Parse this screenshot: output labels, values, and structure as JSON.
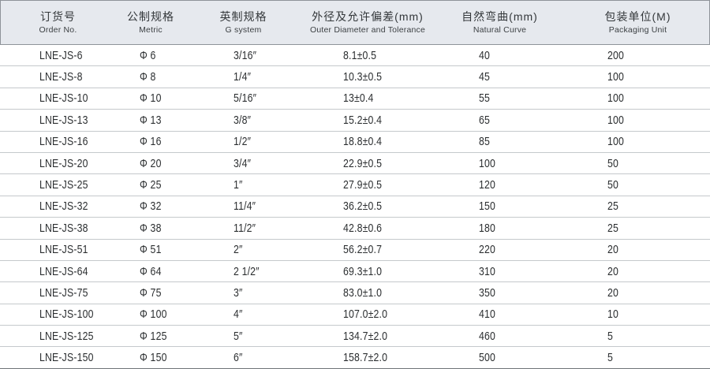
{
  "table": {
    "columns": [
      {
        "key": "order-no",
        "zh": "订货号",
        "en": "Order No."
      },
      {
        "key": "metric",
        "zh": "公制规格",
        "en": "Metric"
      },
      {
        "key": "g-system",
        "zh": "英制规格",
        "en": "G system"
      },
      {
        "key": "outer-diameter",
        "zh": "外径及允许偏差(mm)",
        "en": "Outer Diameter and Tolerance"
      },
      {
        "key": "natural-curve",
        "zh": "自然弯曲(mm)",
        "en": "Natural Curve"
      },
      {
        "key": "packaging-unit",
        "zh": "包装单位(M)",
        "en": "Packaging Unit"
      }
    ],
    "rows": [
      [
        "LNE-JS-6",
        "Φ 6",
        "3/16″",
        "8.1±0.5",
        "40",
        "200"
      ],
      [
        "LNE-JS-8",
        "Φ 8",
        "1/4″",
        "10.3±0.5",
        "45",
        "100"
      ],
      [
        "LNE-JS-10",
        "Φ 10",
        "5/16″",
        "13±0.4",
        "55",
        "100"
      ],
      [
        "LNE-JS-13",
        "Φ 13",
        "3/8″",
        "15.2±0.4",
        "65",
        "100"
      ],
      [
        "LNE-JS-16",
        "Φ 16",
        "1/2″",
        "18.8±0.4",
        "85",
        "100"
      ],
      [
        "LNE-JS-20",
        "Φ 20",
        "3/4″",
        "22.9±0.5",
        "100",
        "50"
      ],
      [
        "LNE-JS-25",
        "Φ 25",
        "1″",
        "27.9±0.5",
        "120",
        "50"
      ],
      [
        "LNE-JS-32",
        "Φ 32",
        "11/4″",
        "36.2±0.5",
        "150",
        "25"
      ],
      [
        "LNE-JS-38",
        "Φ 38",
        "11/2″",
        "42.8±0.6",
        "180",
        "25"
      ],
      [
        "LNE-JS-51",
        "Φ 51",
        "2″",
        "56.2±0.7",
        "220",
        "20"
      ],
      [
        "LNE-JS-64",
        "Φ 64",
        "2 1/2″",
        "69.3±1.0",
        "310",
        "20"
      ],
      [
        "LNE-JS-75",
        "Φ 75",
        "3″",
        "83.0±1.0",
        "350",
        "20"
      ],
      [
        "LNE-JS-100",
        "Φ 100",
        "4″",
        "107.0±2.0",
        "410",
        "10"
      ],
      [
        "LNE-JS-125",
        "Φ 125",
        "5″",
        "134.7±2.0",
        "460",
        "5"
      ],
      [
        "LNE-JS-150",
        "Φ 150",
        "6″",
        "158.7±2.0",
        "500",
        "5"
      ]
    ]
  },
  "colors": {
    "header_bg": "#e6e9ee",
    "header_border": "#8e9399",
    "row_divider": "#c5c9cc",
    "bottom_border": "#6f7478",
    "text": "#2c2f31"
  }
}
